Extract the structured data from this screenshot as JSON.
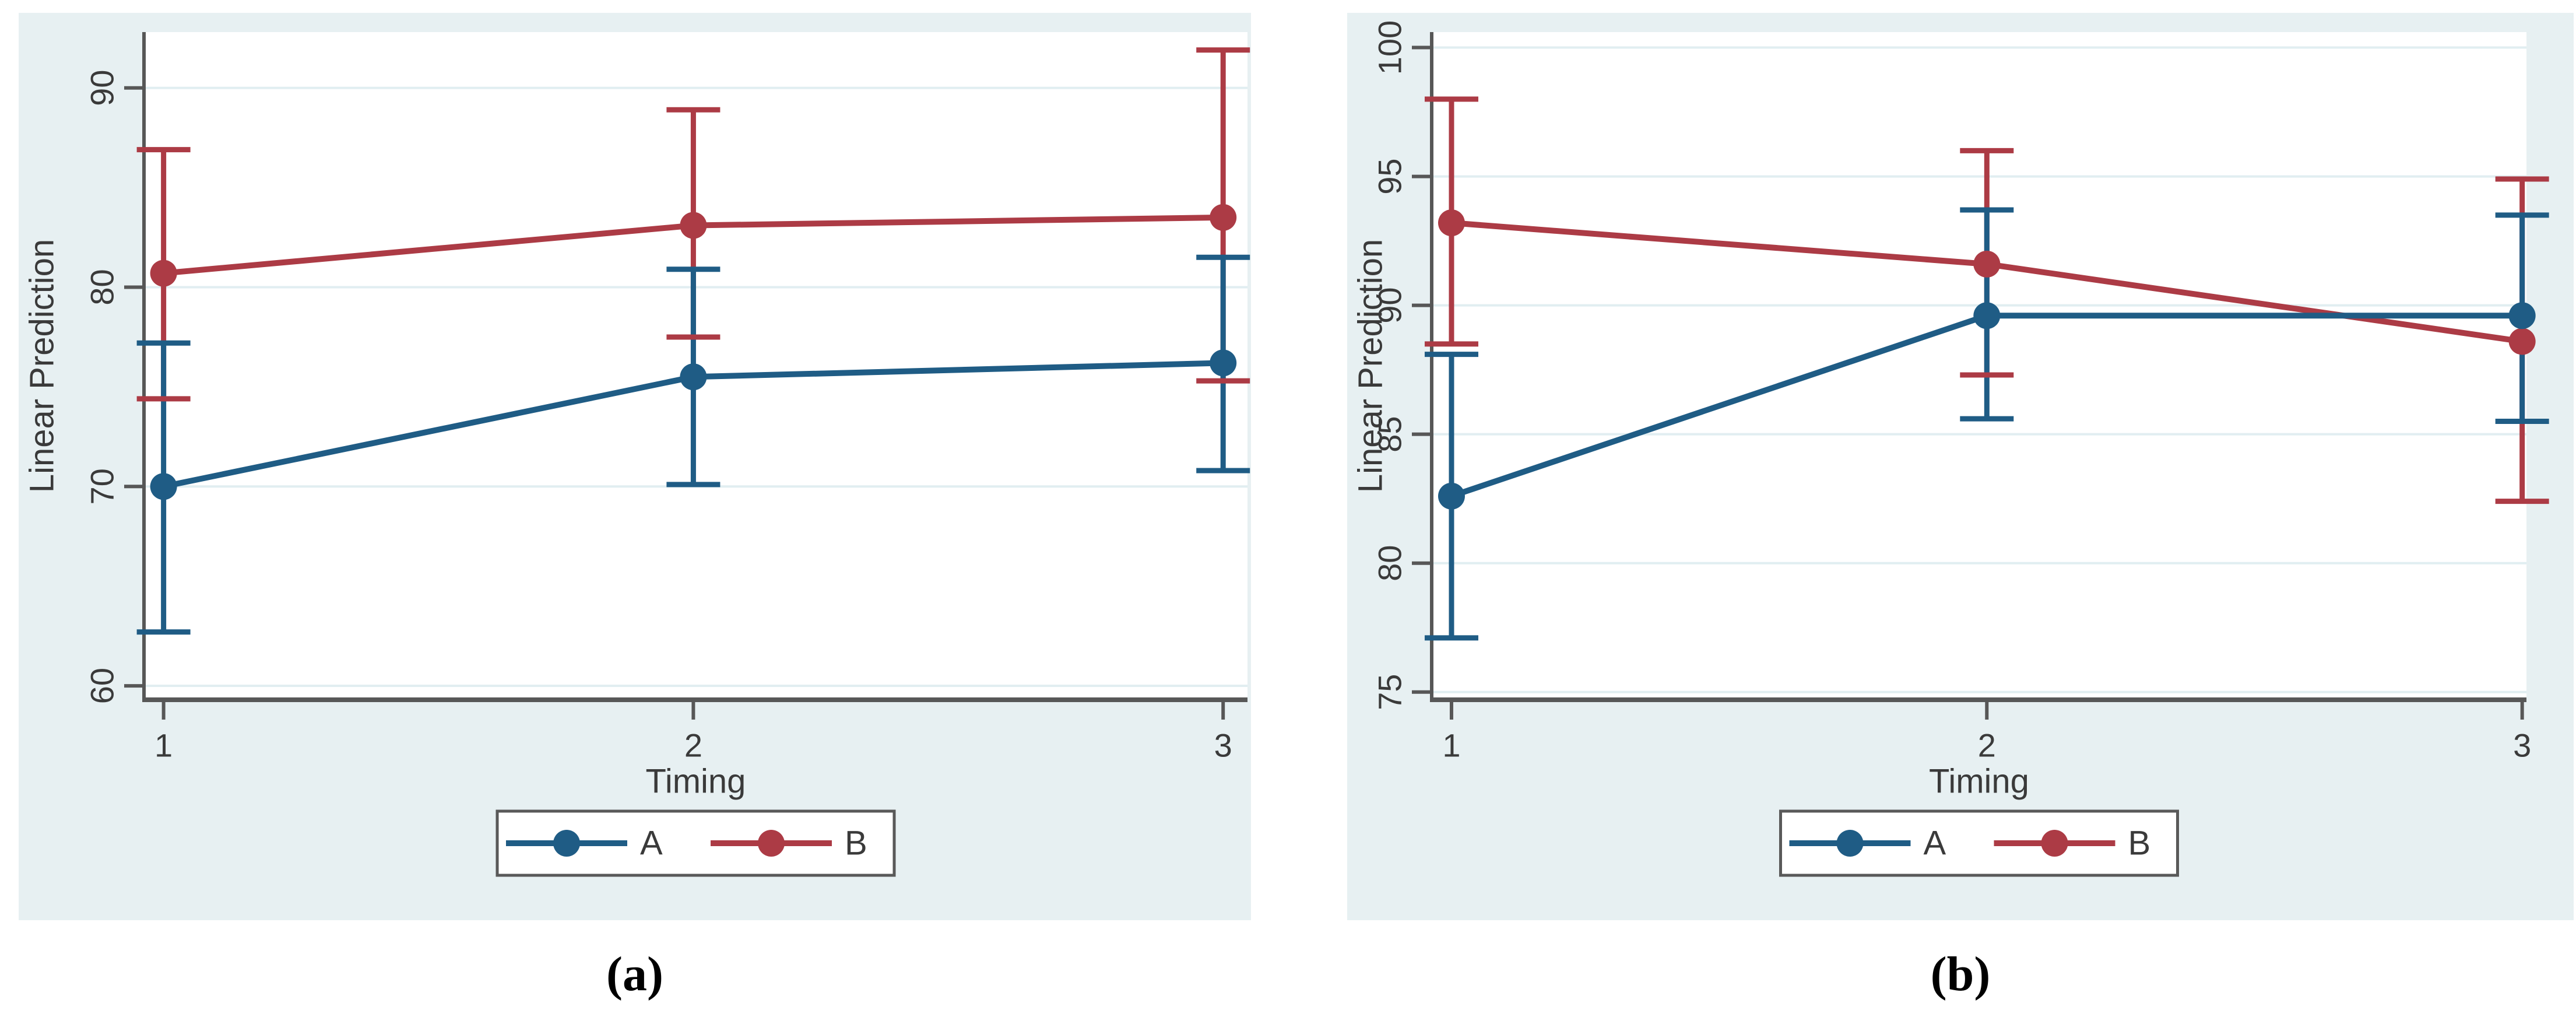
{
  "figure": {
    "captions": [
      "(a)",
      "(b)"
    ]
  },
  "colors": {
    "series_a_blue": "#1f5c85",
    "series_b_red": "#ac3b45",
    "panel_background": "#e7f0f2",
    "plot_background": "#ffffff",
    "gridline": "#e1eef1",
    "axis": "#575757",
    "text": "#3a3a3a",
    "legend_border": "#595959"
  },
  "chart_data": [
    {
      "type": "line",
      "title": "",
      "xlabel": "Timing",
      "ylabel": "Linear Prediction",
      "x": [
        1,
        2,
        3
      ],
      "xtick_labels": [
        "1",
        "2",
        "3"
      ],
      "yticks": [
        60,
        70,
        80,
        90
      ],
      "xlim": [
        0.963,
        3.046
      ],
      "ylim": [
        59.3,
        92.8
      ],
      "grid": true,
      "legend_position": "bottom",
      "series": [
        {
          "name": "A",
          "color": "#1f5c85",
          "values": [
            70.0,
            75.5,
            76.2
          ],
          "ci_low": [
            62.7,
            70.1,
            70.8
          ],
          "ci_high": [
            77.2,
            80.9,
            81.5
          ]
        },
        {
          "name": "B",
          "color": "#ac3b45",
          "values": [
            80.7,
            83.1,
            83.5
          ],
          "ci_low": [
            74.4,
            77.5,
            75.3
          ],
          "ci_high": [
            86.9,
            88.9,
            91.9
          ]
        }
      ]
    },
    {
      "type": "line",
      "title": "",
      "xlabel": "Timing",
      "ylabel": "Linear Prediction",
      "x": [
        1,
        2,
        3
      ],
      "xtick_labels": [
        "1",
        "2",
        "3"
      ],
      "yticks": [
        75,
        80,
        85,
        90,
        95,
        100
      ],
      "xlim": [
        0.963,
        3.008
      ],
      "ylim": [
        74.7,
        100.6
      ],
      "grid": true,
      "legend_position": "bottom",
      "series": [
        {
          "name": "A",
          "color": "#1f5c85",
          "values": [
            82.6,
            89.6,
            89.6
          ],
          "ci_low": [
            77.1,
            85.6,
            85.5
          ],
          "ci_high": [
            88.1,
            93.7,
            93.5
          ]
        },
        {
          "name": "B",
          "color": "#ac3b45",
          "values": [
            93.2,
            91.6,
            88.6
          ],
          "ci_low": [
            88.5,
            87.3,
            82.4
          ],
          "ci_high": [
            98.0,
            96.0,
            94.9
          ]
        }
      ]
    }
  ]
}
